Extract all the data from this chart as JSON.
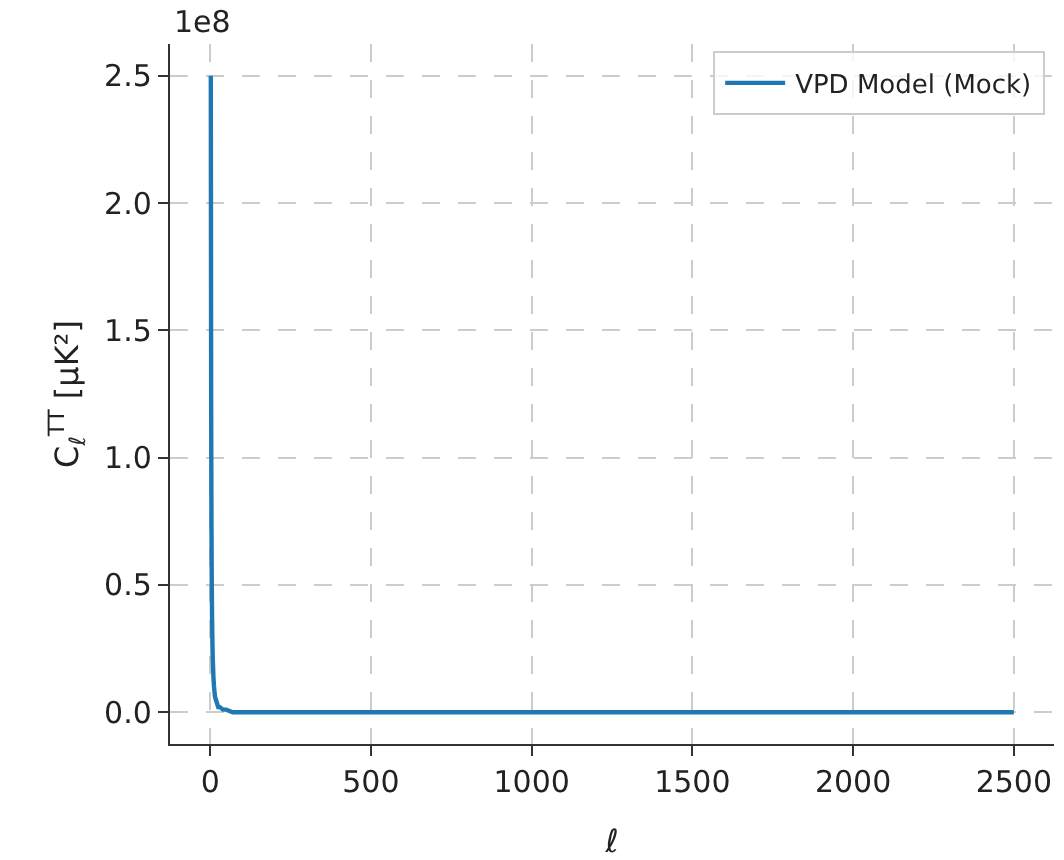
{
  "chart_data": {
    "type": "line",
    "xlabel": "ℓ",
    "ylabel": "C$_{ℓ}$$^{TT}$ [μK²]",
    "annotations": [
      "1e8"
    ],
    "x": [
      2,
      3,
      4,
      5,
      6,
      7,
      8,
      10,
      12,
      15,
      20,
      25,
      30,
      40,
      50,
      70,
      100,
      200,
      500,
      1000,
      1500,
      2000,
      2500
    ],
    "series": [
      {
        "name": "VPD Model (Mock)",
        "color": "#1f77b4",
        "values": [
          2.5,
          1.25,
          0.75,
          0.5,
          0.36,
          0.27,
          0.21,
          0.14,
          0.1,
          0.06,
          0.04,
          0.02,
          0.02,
          0.01,
          0.01,
          0,
          0,
          0,
          0,
          0,
          0,
          0,
          0
        ]
      }
    ],
    "xlim": [
      -125,
      2625
    ],
    "xticks": [
      0,
      500,
      1000,
      1500,
      2000,
      2500
    ],
    "ylim": [
      -0.125,
      2.625
    ],
    "yticks": [
      {
        "value": 0,
        "label": "0.0"
      },
      {
        "value": 0.5,
        "label": "0.5"
      },
      {
        "value": 1,
        "label": "1.0"
      },
      {
        "value": 1.5,
        "label": "1.5"
      },
      {
        "value": 2,
        "label": "2.0"
      },
      {
        "value": 2.5,
        "label": "2.5"
      }
    ],
    "grid": true,
    "legend": "top right",
    "marker": "none",
    "line_style": "solid"
  }
}
